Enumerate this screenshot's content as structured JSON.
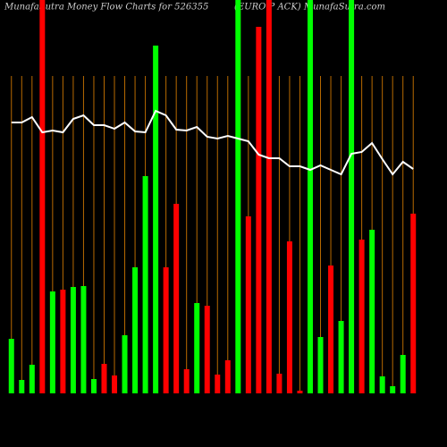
{
  "chart_data": {
    "type": "bar",
    "title": "MunafaSutra  Money Flow  Charts for 526355",
    "subtitle": "(EURO P                ACK) MunafaSutra.com",
    "categories": [
      null,
      null,
      null,
      null,
      null,
      null,
      null,
      null,
      null,
      null,
      null,
      null,
      null,
      null,
      null,
      null,
      null,
      null,
      null,
      null,
      null,
      null,
      null,
      null,
      null,
      null,
      null,
      null,
      null,
      null,
      null,
      null,
      null,
      null,
      null,
      null,
      null,
      null,
      null,
      null
    ],
    "values": [
      61,
      15,
      32,
      440,
      114,
      116,
      119,
      120,
      16,
      33,
      20,
      65,
      141,
      243,
      389,
      141,
      212,
      27,
      101,
      98,
      21,
      37,
      440,
      198,
      410,
      440,
      22,
      170,
      3,
      440,
      63,
      143,
      81,
      440,
      172,
      183,
      19,
      8,
      43,
      201
    ],
    "bar_colors": [
      "#00ff00",
      "#00ff00",
      "#00ff00",
      "#ff0000",
      "#00ff00",
      "#ff0000",
      "#00ff00",
      "#00ff00",
      "#00ff00",
      "#ff0000",
      "#ff0000",
      "#00ff00",
      "#00ff00",
      "#00ff00",
      "#00ff00",
      "#ff0000",
      "#ff0000",
      "#ff0000",
      "#00ff00",
      "#ff0000",
      "#ff0000",
      "#ff0000",
      "#00ff00",
      "#ff0000",
      "#ff0000",
      "#ff0000",
      "#ff0000",
      "#ff0000",
      "#ff0000",
      "#00ff00",
      "#00ff00",
      "#ff0000",
      "#00ff00",
      "#00ff00",
      "#ff0000",
      "#00ff00",
      "#00ff00",
      "#00ff00",
      "#00ff00",
      "#ff0000"
    ],
    "line": {
      "color": "#ffffff",
      "values": [
        303,
        303,
        309,
        292,
        294,
        292,
        307,
        311,
        300,
        300,
        296,
        303,
        293,
        292,
        316,
        311,
        295,
        294,
        298,
        287,
        285,
        288,
        285,
        282,
        267,
        263,
        263,
        254,
        254,
        250,
        255,
        250,
        245,
        268,
        270,
        280,
        262,
        245,
        259,
        251
      ]
    },
    "ylim": [
      0,
      440
    ],
    "grid": true,
    "grid_color": "#b86a00"
  }
}
